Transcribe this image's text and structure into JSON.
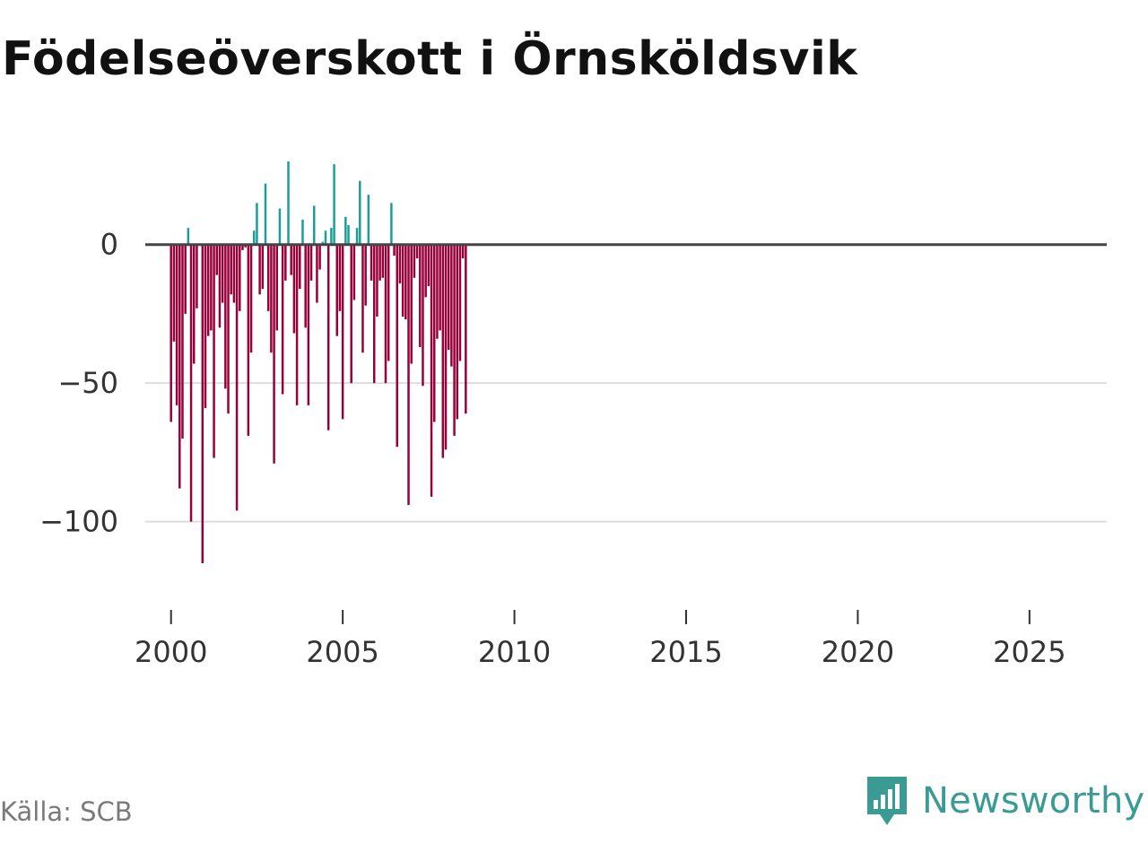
{
  "title": "Födelseöverskott i Örnsköldsvik",
  "source": "Källa: SCB",
  "brand": "Newsworthy",
  "colors": {
    "positive": "#1a9e96",
    "negative": "#98003a",
    "zero_line": "#444444",
    "grid": "#dddddd",
    "brand": "#3a9b93"
  },
  "chart_data": {
    "type": "bar",
    "title": "Födelseöverskott i Örnsköldsvik",
    "xlabel": "",
    "ylabel": "",
    "ylim": [
      -115,
      30
    ],
    "xlim": [
      1999.25,
      2027.25
    ],
    "y_ticks": [
      0,
      -50,
      -100
    ],
    "y_tick_labels": [
      "0",
      "−50",
      "−100"
    ],
    "x_ticks": [
      2000,
      2005,
      2010,
      2015,
      2020,
      2025
    ],
    "x_tick_labels": [
      "2000",
      "2005",
      "2010",
      "2015",
      "2020",
      "2025"
    ],
    "start": [
      2000,
      1
    ],
    "frequency": "monthly",
    "values": [
      -64,
      -35,
      -58,
      -88,
      -70,
      -25,
      6,
      -100,
      -43,
      -23,
      0,
      -115,
      -59,
      -33,
      -31,
      -77,
      -11,
      -30,
      -21,
      -52,
      -61,
      -18,
      -21,
      -96,
      -24,
      -2,
      -1,
      -69,
      -39,
      5,
      15,
      -18,
      -16,
      22,
      -24,
      -39,
      -79,
      -31,
      13,
      -54,
      -13,
      30,
      -11,
      -32,
      -58,
      -16,
      9,
      -30,
      -58,
      -13,
      14,
      -21,
      -9,
      1,
      5,
      -67,
      6,
      29,
      -33,
      -24,
      -63,
      10,
      7,
      -50,
      -20,
      6,
      23,
      -39,
      -22,
      18,
      -13,
      -50,
      -26,
      -13,
      -12,
      -50,
      -42,
      15,
      -4,
      -73,
      -14,
      -26,
      -27,
      -94,
      -43,
      -12,
      -5,
      -37,
      -51,
      -19,
      -15,
      -91,
      -64,
      -34,
      -31,
      -77,
      -74,
      -38,
      -44,
      -69,
      -63,
      -42,
      -5,
      -61
    ]
  }
}
